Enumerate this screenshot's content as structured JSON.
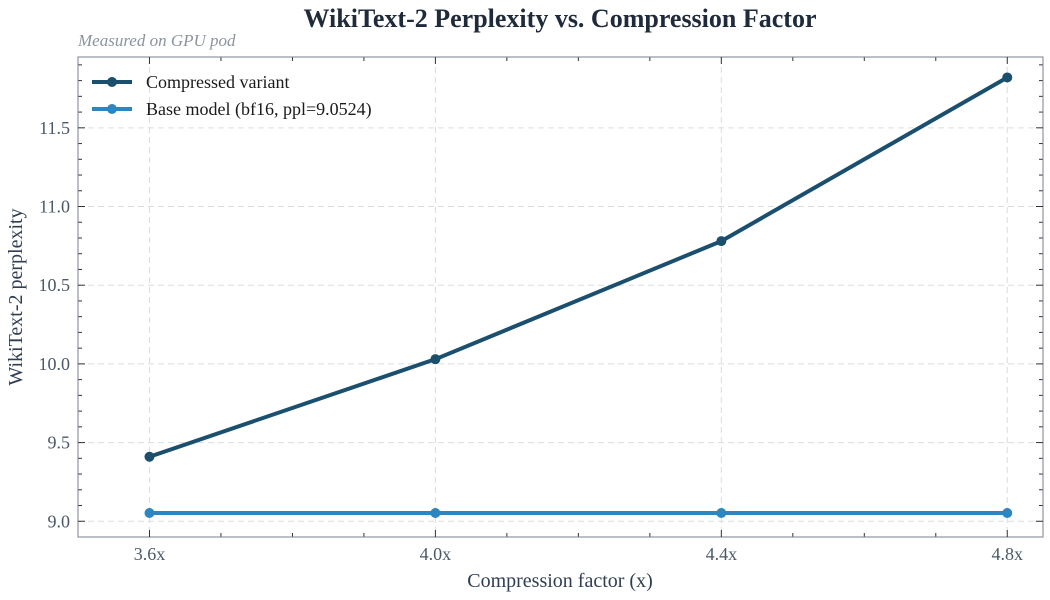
{
  "chart_data": {
    "type": "line",
    "title": "WikiText-2 Perplexity vs. Compression Factor",
    "subtitle": "Measured on GPU pod",
    "xlabel": "Compression factor (x)",
    "ylabel": "WikiText-2 perplexity",
    "categories": [
      "3.6x",
      "4.0x",
      "4.4x",
      "4.8x"
    ],
    "x": [
      3.6,
      4.0,
      4.4,
      4.8
    ],
    "xlim": [
      3.5,
      4.85
    ],
    "ylim": [
      8.9,
      11.95
    ],
    "yticks": [
      9.0,
      9.5,
      10.0,
      10.5,
      11.0,
      11.5
    ],
    "ytick_labels": [
      "9.0",
      "9.5",
      "10.0",
      "10.5",
      "11.0",
      "11.5"
    ],
    "grid": true,
    "legend_position": "top-left",
    "series": [
      {
        "name": "Compressed variant",
        "color": "#1b4f6e",
        "values": [
          9.41,
          10.03,
          10.78,
          11.82
        ]
      },
      {
        "name": "Base model (bf16, ppl=9.0524)",
        "color": "#2e86c1",
        "values": [
          9.0524,
          9.0524,
          9.0524,
          9.0524
        ]
      }
    ]
  }
}
